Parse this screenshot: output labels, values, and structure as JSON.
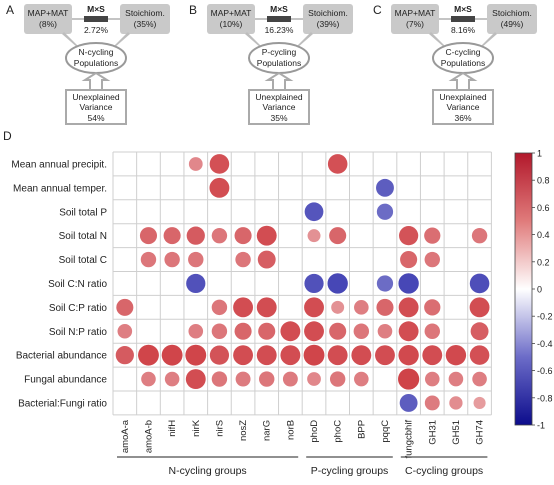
{
  "panels": [
    {
      "letter": "A",
      "left_box": [
        "MAP+MAT",
        "(8%)"
      ],
      "mid_label": "M×S",
      "mid_pct": "2.72%",
      "right_box": [
        "Stoichiom.",
        "(35%)"
      ],
      "ellipse": [
        "N-cycling",
        "Populations"
      ],
      "bottom_box": [
        "Unexplained",
        "Variance",
        "54%"
      ]
    },
    {
      "letter": "B",
      "left_box": [
        "MAP+MAT",
        "(10%)"
      ],
      "mid_label": "M×S",
      "mid_pct": "16.23%",
      "right_box": [
        "Stoichiom.",
        "(39%)"
      ],
      "ellipse": [
        "P-cycling",
        "Populations"
      ],
      "bottom_box": [
        "Unexplained",
        "Variance",
        "35%"
      ]
    },
    {
      "letter": "C",
      "left_box": [
        "MAP+MAT",
        "(7%)"
      ],
      "mid_label": "M×S",
      "mid_pct": "8.16%",
      "right_box": [
        "Stoichiom.",
        "(49%)"
      ],
      "ellipse": [
        "C-cycling",
        "Populations"
      ],
      "bottom_box": [
        "Unexplained",
        "Variance",
        "36%"
      ]
    }
  ],
  "panel_d_letter": "D",
  "chart_data": {
    "type": "heatmap",
    "rows": [
      "Mean annual precipit.",
      "Mean annual temper.",
      "Soil total P",
      "Soil total N",
      "Soil total C",
      "Soil C:N ratio",
      "Soil C:P ratio",
      "Soil N:P ratio",
      "Bacterial abundance",
      "Fungal abundance",
      "Bacterial:Fungi ratio"
    ],
    "columns": [
      "amoA-a",
      "amoA-b",
      "nifH",
      "nirK",
      "nirS",
      "nosZ",
      "narG",
      "norB",
      "phoD",
      "phoC",
      "BPP",
      "pqqC",
      "fungcbhif",
      "GH31",
      "GH51",
      "GH74"
    ],
    "values": [
      [
        null,
        null,
        null,
        0.35,
        0.7,
        null,
        null,
        null,
        null,
        0.7,
        null,
        null,
        null,
        null,
        null,
        null
      ],
      [
        null,
        null,
        null,
        null,
        0.72,
        null,
        null,
        null,
        null,
        null,
        null,
        -0.6,
        null,
        null,
        null,
        null
      ],
      [
        null,
        null,
        null,
        null,
        null,
        null,
        null,
        null,
        -0.65,
        null,
        null,
        -0.5,
        null,
        null,
        null,
        null
      ],
      [
        null,
        0.55,
        0.55,
        0.62,
        0.45,
        0.55,
        0.72,
        null,
        0.3,
        0.55,
        null,
        null,
        0.68,
        0.5,
        null,
        0.45
      ],
      [
        null,
        0.45,
        0.45,
        0.45,
        null,
        0.45,
        0.6,
        null,
        null,
        null,
        null,
        null,
        0.55,
        0.45,
        null,
        null
      ],
      [
        null,
        null,
        null,
        -0.68,
        null,
        null,
        null,
        null,
        -0.68,
        -0.75,
        null,
        -0.5,
        -0.75,
        null,
        null,
        -0.7
      ],
      [
        0.55,
        null,
        null,
        null,
        0.45,
        0.72,
        0.72,
        null,
        0.72,
        0.3,
        0.4,
        0.55,
        0.72,
        0.5,
        null,
        0.72
      ],
      [
        0.4,
        null,
        null,
        0.4,
        0.45,
        0.55,
        0.55,
        0.72,
        0.72,
        0.55,
        0.45,
        0.4,
        0.72,
        0.45,
        null,
        0.6
      ],
      [
        0.62,
        0.78,
        0.78,
        0.78,
        0.68,
        0.72,
        0.72,
        0.72,
        0.78,
        0.72,
        0.72,
        0.72,
        0.75,
        0.72,
        0.75,
        0.7
      ],
      [
        null,
        0.4,
        0.4,
        0.72,
        0.45,
        0.42,
        0.45,
        0.42,
        0.35,
        0.45,
        0.4,
        null,
        0.8,
        0.4,
        0.4,
        0.4
      ],
      [
        null,
        null,
        null,
        null,
        null,
        null,
        null,
        null,
        null,
        null,
        null,
        null,
        -0.6,
        0.42,
        0.32,
        0.25
      ]
    ],
    "groups": [
      {
        "name": "N-cycling groups",
        "start": 0,
        "end": 7
      },
      {
        "name": "P-cycling groups",
        "start": 8,
        "end": 11
      },
      {
        "name": "C-cycling groups",
        "start": 12,
        "end": 15
      }
    ],
    "colorbar": {
      "min": -1,
      "max": 1,
      "ticks": [
        "1",
        "0.8",
        "0.6",
        "0.4",
        "0.2",
        "0",
        "-0.2",
        "-0.4",
        "-0.6",
        "-0.8",
        "-1"
      ]
    },
    "colors": {
      "neg": "#1a1aa8",
      "zero": "#ffffff",
      "pos": "#c8102e"
    }
  }
}
